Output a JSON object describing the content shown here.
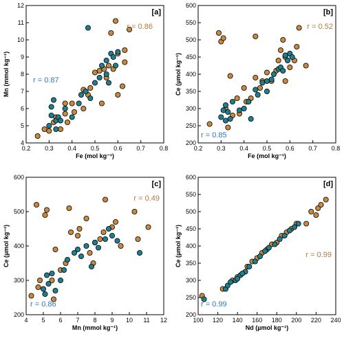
{
  "chart_data": [
    {
      "type": "scatter",
      "title": "[a]",
      "xlabel": "Fe (mol kg⁻¹)",
      "ylabel": "Mn (mmol kg⁻¹)",
      "xlim": [
        0.2,
        0.8
      ],
      "xticks": [
        0.2,
        0.3,
        0.4,
        0.5,
        0.6,
        0.7,
        0.8
      ],
      "ylim": [
        4,
        12
      ],
      "yticks": [
        4,
        5,
        6,
        7,
        8,
        9,
        10,
        11,
        12
      ],
      "annotations": [
        {
          "text": "r = 0.86",
          "color": "#b07a3c"
        },
        {
          "text": "r = 0.87",
          "color": "#2a78c0"
        }
      ],
      "series": [
        {
          "color": "#c8883e",
          "x": [
            0.25,
            0.28,
            0.3,
            0.32,
            0.33,
            0.35,
            0.37,
            0.37,
            0.38,
            0.4,
            0.41,
            0.45,
            0.45,
            0.47,
            0.48,
            0.5,
            0.52,
            0.53,
            0.54,
            0.55,
            0.56,
            0.57,
            0.58,
            0.59,
            0.6,
            0.62,
            0.63,
            0.63,
            0.65,
            0.6
          ],
          "values": [
            4.4,
            4.8,
            4.7,
            5.2,
            5.5,
            4.8,
            5.7,
            6.3,
            5.2,
            6.3,
            5.8,
            7.1,
            6.0,
            6.8,
            7.2,
            8.1,
            8.2,
            6.3,
            8.3,
            7.8,
            8.5,
            10.4,
            8.3,
            11.1,
            9.2,
            7.3,
            8.7,
            9.4,
            10.6,
            6.8
          ]
        },
        {
          "color": "#1f7f8f",
          "x": [
            0.3,
            0.31,
            0.31,
            0.32,
            0.33,
            0.33,
            0.34,
            0.35,
            0.37,
            0.4,
            0.43,
            0.44,
            0.46,
            0.47,
            0.48,
            0.5,
            0.52,
            0.53,
            0.55,
            0.55,
            0.56,
            0.57,
            0.58,
            0.59,
            0.6
          ],
          "values": [
            5.0,
            5.6,
            6.1,
            6.5,
            5.3,
            4.8,
            5.5,
            5.3,
            6.0,
            5.5,
            6.3,
            6.8,
            7.0,
            10.7,
            6.6,
            7.5,
            7.8,
            8.5,
            8.0,
            8.8,
            7.5,
            9.2,
            9.0,
            8.5,
            9.3
          ]
        }
      ]
    },
    {
      "type": "scatter",
      "title": "[b]",
      "xlabel": "Fe (mol kg⁻¹)",
      "ylabel": "Ce (µmol kg⁻¹)",
      "xlim": [
        0.2,
        0.8
      ],
      "xticks": [
        0.2,
        0.3,
        0.4,
        0.5,
        0.6,
        0.7,
        0.8
      ],
      "ylim": [
        200,
        600
      ],
      "yticks": [
        200,
        250,
        300,
        350,
        400,
        450,
        500,
        550,
        600
      ],
      "annotations": [
        {
          "text": "r = 0.52",
          "color": "#b07a3c"
        },
        {
          "text": "r = 0.85",
          "color": "#2a78c0"
        }
      ],
      "series": [
        {
          "color": "#c8883e",
          "x": [
            0.25,
            0.29,
            0.3,
            0.31,
            0.33,
            0.32,
            0.34,
            0.35,
            0.37,
            0.38,
            0.4,
            0.41,
            0.43,
            0.45,
            0.45,
            0.47,
            0.48,
            0.5,
            0.52,
            0.54,
            0.55,
            0.56,
            0.57,
            0.58,
            0.6,
            0.62,
            0.63,
            0.64,
            0.67,
            0.58
          ],
          "values": [
            255,
            520,
            495,
            505,
            245,
            300,
            395,
            280,
            330,
            285,
            360,
            320,
            330,
            510,
            390,
            360,
            380,
            405,
            380,
            410,
            440,
            470,
            500,
            450,
            420,
            440,
            480,
            535,
            425,
            380
          ]
        },
        {
          "color": "#1f7f8f",
          "x": [
            0.3,
            0.31,
            0.32,
            0.32,
            0.33,
            0.34,
            0.35,
            0.38,
            0.4,
            0.42,
            0.43,
            0.45,
            0.46,
            0.48,
            0.5,
            0.52,
            0.53,
            0.55,
            0.56,
            0.57,
            0.58,
            0.59,
            0.6,
            0.61,
            0.5
          ],
          "values": [
            275,
            295,
            310,
            265,
            290,
            270,
            320,
            295,
            300,
            320,
            270,
            355,
            340,
            375,
            350,
            385,
            400,
            415,
            420,
            410,
            455,
            440,
            460,
            450,
            380
          ]
        }
      ]
    },
    {
      "type": "scatter",
      "title": "[c]",
      "xlabel": "Mn (mmol kg⁻¹)",
      "ylabel": "Ce (µmol kg⁻¹)",
      "xlim": [
        4,
        12
      ],
      "xticks": [
        4,
        5,
        6,
        7,
        8,
        9,
        10,
        11,
        12
      ],
      "ylim": [
        200,
        600
      ],
      "yticks": [
        200,
        300,
        400,
        500,
        600
      ],
      "annotations": [
        {
          "text": "r = 0.49",
          "color": "#b07a3c"
        },
        {
          "text": "r = 0.86",
          "color": "#2a78c0"
        }
      ],
      "series": [
        {
          "color": "#c8883e",
          "x": [
            4.3,
            4.6,
            4.7,
            4.8,
            5.1,
            5.2,
            5.5,
            5.6,
            5.7,
            6.0,
            6.3,
            6.5,
            6.6,
            7.0,
            7.1,
            7.5,
            7.7,
            7.9,
            8.0,
            8.3,
            8.5,
            8.6,
            9.0,
            9.2,
            10.3,
            10.5,
            11.1,
            9.5
          ],
          "values": [
            255,
            520,
            280,
            300,
            490,
            505,
            300,
            245,
            390,
            330,
            350,
            510,
            440,
            430,
            450,
            480,
            380,
            350,
            410,
            420,
            440,
            535,
            455,
            470,
            500,
            420,
            455,
            400
          ]
        },
        {
          "color": "#1f7f8f",
          "x": [
            5.0,
            5.1,
            5.2,
            5.3,
            5.5,
            5.7,
            6.0,
            6.2,
            6.4,
            6.8,
            7.0,
            7.2,
            7.5,
            8.0,
            8.2,
            8.6,
            8.8,
            9.0,
            9.3,
            10.6,
            7.8
          ],
          "values": [
            275,
            260,
            315,
            290,
            320,
            270,
            300,
            330,
            360,
            380,
            390,
            370,
            400,
            410,
            395,
            420,
            450,
            430,
            415,
            380,
            340
          ]
        }
      ]
    },
    {
      "type": "scatter",
      "title": "[d]",
      "xlabel": "Nd (µmol kg⁻¹)",
      "ylabel": "Ce (µmol kg⁻¹)",
      "xlim": [
        100,
        240
      ],
      "xticks": [
        100,
        120,
        140,
        160,
        180,
        200,
        220,
        240
      ],
      "ylim": [
        200,
        600
      ],
      "yticks": [
        200,
        250,
        300,
        350,
        400,
        450,
        500,
        550,
        600
      ],
      "annotations": [
        {
          "text": "r = 0.99",
          "color": "#b07a3c"
        },
        {
          "text": "r = 0.99",
          "color": "#2a78c0"
        }
      ],
      "series": [
        {
          "color": "#c8883e",
          "x": [
            104,
            125,
            135,
            140,
            150,
            155,
            160,
            165,
            170,
            175,
            180,
            185,
            190,
            195,
            200,
            215,
            220,
            222,
            225,
            230,
            210
          ],
          "values": [
            255,
            275,
            300,
            310,
            340,
            355,
            365,
            380,
            390,
            405,
            410,
            430,
            440,
            450,
            465,
            500,
            490,
            510,
            520,
            535,
            465
          ]
        },
        {
          "color": "#1f7f8f",
          "x": [
            106,
            128,
            130,
            133,
            138,
            143,
            148,
            152,
            158,
            163,
            168,
            172,
            178,
            183,
            188,
            193,
            198,
            202,
            140,
            145
          ],
          "values": [
            245,
            275,
            285,
            295,
            300,
            315,
            325,
            340,
            355,
            370,
            385,
            395,
            405,
            420,
            430,
            445,
            455,
            465,
            305,
            320
          ]
        }
      ]
    }
  ]
}
